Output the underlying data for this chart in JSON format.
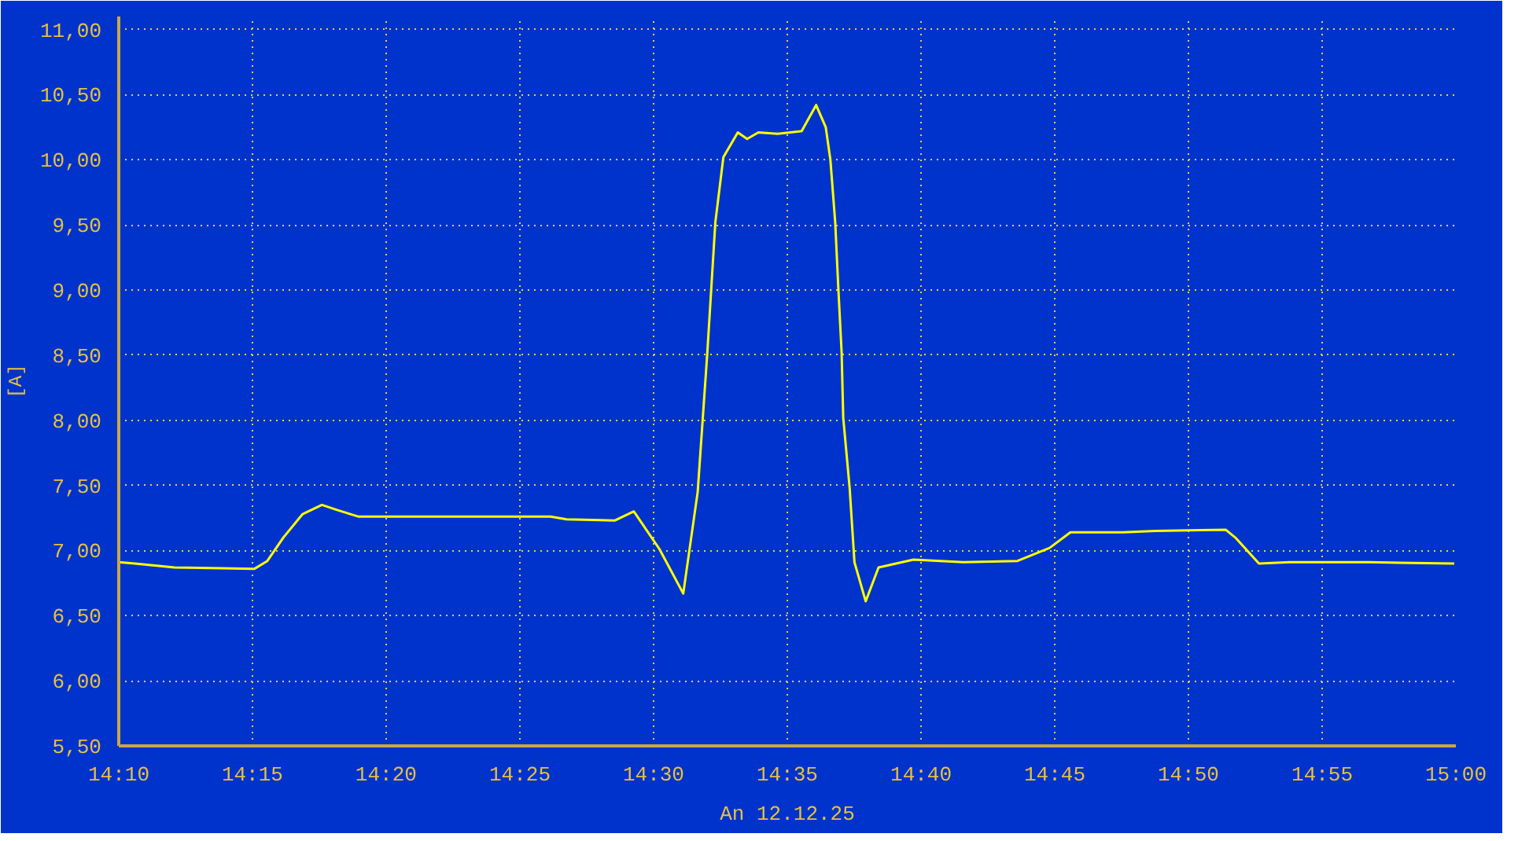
{
  "chart_data": {
    "type": "line",
    "ylabel": "[A]",
    "annotations": [
      "An 12.12.25"
    ],
    "x": [
      14.1667,
      14.1767,
      14.2015,
      14.2513,
      14.2593,
      14.2693,
      14.2813,
      14.2933,
      14.3032,
      14.3162,
      14.3412,
      14.381,
      14.4358,
      14.4458,
      14.4757,
      14.4877,
      14.5037,
      14.5185,
      14.5275,
      14.5335,
      14.5385,
      14.5435,
      14.5525,
      14.5583,
      14.5653,
      14.5773,
      14.5923,
      14.6013,
      14.6073,
      14.6102,
      14.6132,
      14.6152,
      14.6172,
      14.6182,
      14.6222,
      14.6252,
      14.6322,
      14.6402,
      14.662,
      14.693,
      14.7268,
      14.7468,
      14.7598,
      14.7927,
      14.8127,
      14.8565,
      14.8625,
      14.8773,
      14.8963,
      14.9462,
      14.999
    ],
    "series": [
      {
        "color": "#ffff00",
        "values": [
          6.91,
          6.9,
          6.87,
          6.86,
          6.92,
          7.1,
          7.28,
          7.35,
          7.31,
          7.26,
          7.26,
          7.26,
          7.26,
          7.24,
          7.23,
          7.3,
          7.01,
          6.67,
          7.45,
          8.52,
          9.52,
          10.02,
          10.21,
          10.16,
          10.21,
          10.2,
          10.22,
          10.42,
          10.25,
          10.0,
          9.52,
          9.0,
          8.52,
          8.02,
          7.48,
          6.91,
          6.61,
          6.87,
          6.93,
          6.91,
          6.92,
          7.02,
          7.14,
          7.14,
          7.15,
          7.16,
          7.1,
          6.9,
          6.91,
          6.91,
          6.9
        ]
      }
    ],
    "xlim": [
      14.1667,
      15.0
    ],
    "ylim": [
      5.5,
      11.1
    ],
    "xticks": [
      {
        "value": 14.1667,
        "label": "14:10"
      },
      {
        "value": 14.25,
        "label": "14:15"
      },
      {
        "value": 14.3333,
        "label": "14:20"
      },
      {
        "value": 14.4167,
        "label": "14:25"
      },
      {
        "value": 14.5,
        "label": "14:30"
      },
      {
        "value": 14.5833,
        "label": "14:35"
      },
      {
        "value": 14.6667,
        "label": "14:40"
      },
      {
        "value": 14.75,
        "label": "14:45"
      },
      {
        "value": 14.8333,
        "label": "14:50"
      },
      {
        "value": 14.9167,
        "label": "14:55"
      },
      {
        "value": 15.0,
        "label": "15:00"
      }
    ],
    "yticks": [
      {
        "value": 5.5,
        "label": "5,50"
      },
      {
        "value": 6.0,
        "label": "6,00"
      },
      {
        "value": 6.5,
        "label": "6,50"
      },
      {
        "value": 7.0,
        "label": "7,00"
      },
      {
        "value": 7.5,
        "label": "7,50"
      },
      {
        "value": 8.0,
        "label": "8,00"
      },
      {
        "value": 8.5,
        "label": "8,50"
      },
      {
        "value": 9.0,
        "label": "9,00"
      },
      {
        "value": 9.5,
        "label": "9,50"
      },
      {
        "value": 10.0,
        "label": "10,00"
      },
      {
        "value": 10.5,
        "label": "10,50"
      },
      {
        "value": 11.0,
        "label": "11,00"
      }
    ],
    "grid": true,
    "line_style": "solid"
  }
}
